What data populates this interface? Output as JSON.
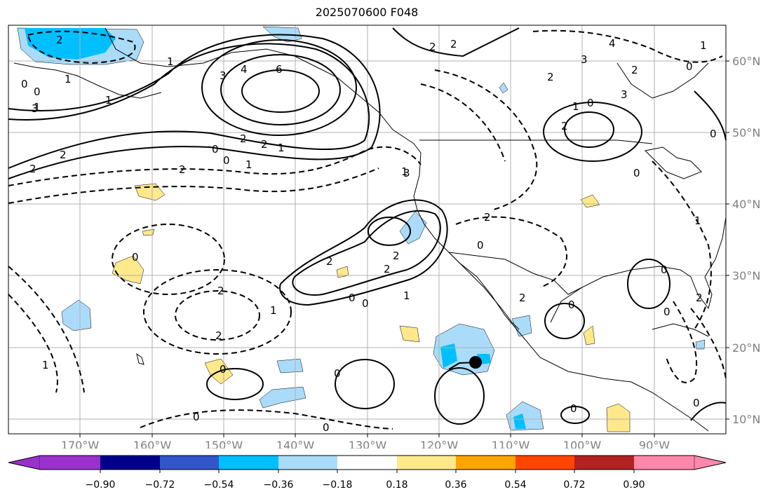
{
  "title": "2025070600 F048",
  "map": {
    "lon_labels": [
      "170°W",
      "160°W",
      "150°W",
      "140°W",
      "130°W",
      "120°W",
      "110°W",
      "100°W",
      "90°W"
    ],
    "lat_labels": [
      "60°N",
      "50°N",
      "40°N",
      "30°N",
      "20°N",
      "10°N"
    ],
    "contour_labels": [
      "2",
      "1",
      "1",
      "0",
      "1",
      "1",
      "0",
      "3",
      "2",
      "2",
      "0",
      "1",
      "2",
      "3",
      "4",
      "6",
      "2",
      "2",
      "1",
      "0",
      "0",
      "1",
      "2",
      "2",
      "2",
      "2",
      "3",
      "4",
      "2",
      "3",
      "1",
      "1",
      "2",
      "2",
      "2",
      "0",
      "0",
      "0",
      "2",
      "3",
      "2",
      "1",
      "0",
      "0",
      "1",
      "2",
      "2",
      "1",
      "0",
      "1",
      "0",
      "2",
      "0",
      "0",
      "0",
      "0",
      "0",
      "0",
      "0",
      "0",
      "0"
    ],
    "colors": {
      "neg_light": "#aadcfa",
      "neg_mid": "#00bfff",
      "pos_light": "#ffe98a",
      "coast": "#000000",
      "grid": "#b0b0b0"
    }
  },
  "colorbar": {
    "ticks": [
      "−0.90",
      "−0.72",
      "−0.54",
      "−0.36",
      "−0.18",
      "0.18",
      "0.36",
      "0.54",
      "0.72",
      "0.90"
    ],
    "colors": [
      "#9932cc",
      "#00008b",
      "#3355cc",
      "#00bfff",
      "#aadcfa",
      "#ffffff",
      "#ffe98a",
      "#ffa500",
      "#ff4500",
      "#b22222",
      "#ff88aa"
    ]
  }
}
